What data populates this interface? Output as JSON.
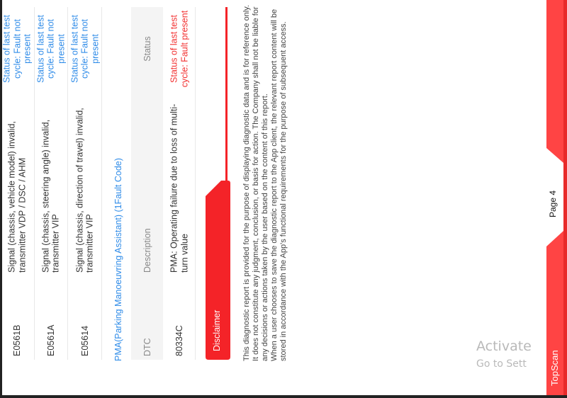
{
  "table1": {
    "rows": [
      {
        "dtc": "E0561B",
        "description": "Signal (chassis, vehicle model) invalid, transmitter VDP / DSC / AHM",
        "status": "Status of last test cycle: Fault not present"
      },
      {
        "dtc": "E0561A",
        "description": "Signal (chassis, steering angle) invalid, transmitter VIP",
        "status": "Status of last test cycle: Fault not present"
      },
      {
        "dtc": "E05614",
        "description": "Signal (chassis, direction of travel) invalid, transmitter VIP",
        "status": "Status of last test cycle: Fault not present"
      }
    ]
  },
  "pma": {
    "title": "PMA(Parking Manoeuvring Assistant) (1Fault Code)",
    "headers": {
      "dtc": "DTC",
      "description": "Description",
      "status": "Status"
    },
    "rows": [
      {
        "dtc": "80334C",
        "description": "PMA: Operating failure due to loss of multi-turn value",
        "status": "Status of last test cycle: Fault present"
      }
    ]
  },
  "disclaimer": {
    "title": "Disclaimer",
    "line1": "This diagnostic report is provided for the purpose of displaying diagnostic data and is for reference only. It does not constitute any judgment, conclusion, or basis for action. The Company shall not be liable for any decisions or actions taken by the user based on the content of this report.",
    "line2": "When a user chooses to save the diagnostic report to the App client, the relevant report content will be stored in accordance with the App's functional requirements for the purpose of subsequent access."
  },
  "footer": {
    "page": "Page 4",
    "brand": "TopScan"
  },
  "watermark": {
    "line1": "Activate",
    "line2": "Go to Sett"
  },
  "colors": {
    "accent": "#f42328",
    "footer": "#ff4444",
    "link": "#2e8be8",
    "fault": "#f23030"
  }
}
